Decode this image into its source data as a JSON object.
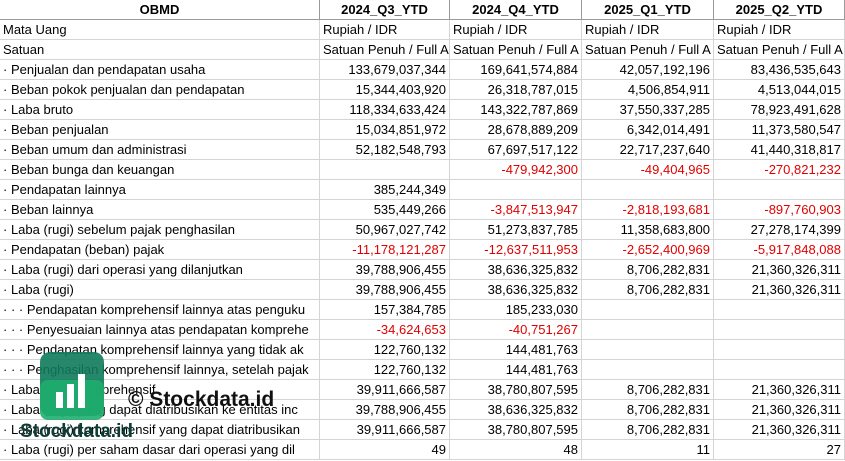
{
  "header": {
    "title": "OBMD",
    "columns": [
      "2024_Q3_YTD",
      "2024_Q4_YTD",
      "2025_Q1_YTD",
      "2025_Q2_YTD"
    ]
  },
  "table": {
    "rows": [
      {
        "label": "Mata Uang",
        "cells": [
          "Rupiah / IDR",
          "Rupiah / IDR",
          "Rupiah / IDR",
          "Rupiah / IDR"
        ]
      },
      {
        "label": "Satuan",
        "cells": [
          "Satuan Penuh / Full A",
          "Satuan Penuh / Full A",
          "Satuan Penuh / Full A",
          "Satuan Penuh / Full A"
        ]
      },
      {
        "label": "· Penjualan dan pendapatan usaha",
        "cells": [
          "133,679,037,344",
          "169,641,574,884",
          "42,057,192,196",
          "83,436,535,643"
        ]
      },
      {
        "label": "· Beban pokok penjualan dan pendapatan",
        "cells": [
          "15,344,403,920",
          "26,318,787,015",
          "4,506,854,911",
          "4,513,044,015"
        ]
      },
      {
        "label": "· Laba bruto",
        "cells": [
          "118,334,633,424",
          "143,322,787,869",
          "37,550,337,285",
          "78,923,491,628"
        ]
      },
      {
        "label": "· Beban penjualan",
        "cells": [
          "15,034,851,972",
          "28,678,889,209",
          "6,342,014,491",
          "11,373,580,547"
        ]
      },
      {
        "label": "· Beban umum dan administrasi",
        "cells": [
          "52,182,548,793",
          "67,697,517,122",
          "22,717,237,640",
          "41,440,318,817"
        ]
      },
      {
        "label": "· Beban bunga dan keuangan",
        "cells": [
          null,
          "-479,942,300",
          "-49,404,965",
          "-270,821,232"
        ]
      },
      {
        "label": "· Pendapatan lainnya",
        "cells": [
          "385,244,349",
          null,
          null,
          null
        ]
      },
      {
        "label": "· Beban lainnya",
        "cells": [
          "535,449,266",
          "-3,847,513,947",
          "-2,818,193,681",
          "-897,760,903"
        ]
      },
      {
        "label": "· Laba (rugi) sebelum pajak penghasilan",
        "cells": [
          "50,967,027,742",
          "51,273,837,785",
          "11,358,683,800",
          "27,278,174,399"
        ]
      },
      {
        "label": "· Pendapatan (beban) pajak",
        "cells": [
          "-11,178,121,287",
          "-12,637,511,953",
          "-2,652,400,969",
          "-5,917,848,088"
        ]
      },
      {
        "label": "· Laba (rugi) dari operasi yang dilanjutkan",
        "cells": [
          "39,788,906,455",
          "38,636,325,832",
          "8,706,282,831",
          "21,360,326,311"
        ]
      },
      {
        "label": "· Laba (rugi)",
        "cells": [
          "39,788,906,455",
          "38,636,325,832",
          "8,706,282,831",
          "21,360,326,311"
        ]
      },
      {
        "label": "· · · Pendapatan komprehensif lainnya atas penguku",
        "cells": [
          "157,384,785",
          "185,233,030",
          null,
          null
        ]
      },
      {
        "label": "· · · Penyesuaian lainnya atas pendapatan komprehe",
        "cells": [
          "-34,624,653",
          "-40,751,267",
          null,
          null
        ]
      },
      {
        "label": "· · · Pendapatan komprehensif lainnya yang tidak ak",
        "cells": [
          "122,760,132",
          "144,481,763",
          null,
          null
        ]
      },
      {
        "label": "· · · Penghasilan komprehensif lainnya, setelah pajak",
        "cells": [
          "122,760,132",
          "144,481,763",
          null,
          null
        ]
      },
      {
        "label": "· Laba (rugi) komprehensif",
        "cells": [
          "39,911,666,587",
          "38,780,807,595",
          "8,706,282,831",
          "21,360,326,311"
        ]
      },
      {
        "label": "· Laba (rugi) yang dapat diatribusikan ke entitas inc",
        "cells": [
          "39,788,906,455",
          "38,636,325,832",
          "8,706,282,831",
          "21,360,326,311"
        ]
      },
      {
        "label": "· Laba (rugi) komprehensif yang dapat diatribusikan",
        "cells": [
          "39,911,666,587",
          "38,780,807,595",
          "8,706,282,831",
          "21,360,326,311"
        ]
      },
      {
        "label": "· Laba (rugi) per saham dasar dari operasi yang dil",
        "cells": [
          "49",
          "48",
          "11",
          "27"
        ]
      }
    ]
  },
  "watermark": {
    "copyright": "© Stockdata.id",
    "brand": "Stockdata.id"
  }
}
